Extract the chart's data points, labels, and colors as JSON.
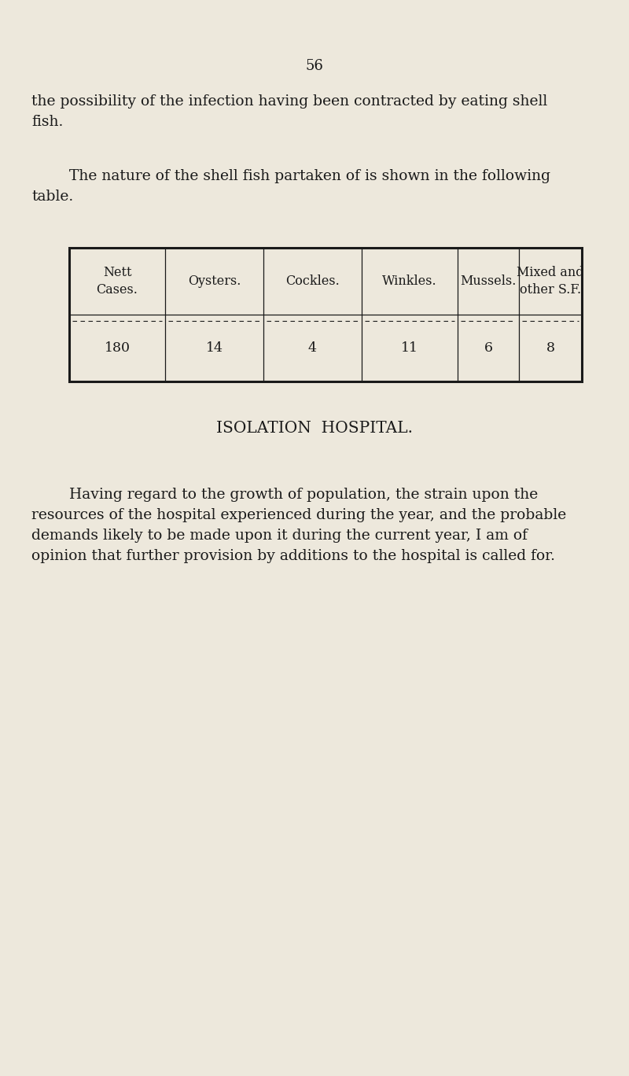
{
  "bg_color": "#ede8dc",
  "text_color": "#1a1a1a",
  "page_number": "56",
  "para1": "the possibility of the infection having been contracted by eating shell\nfish.",
  "para2": "        The nature of the shell fish partaken of is shown in the following\ntable.",
  "col_headers": [
    "Nett\nCases.",
    "Oysters.",
    "Cockles.",
    "Winkles.",
    "Mussels.",
    "Mixed and\nother S.F."
  ],
  "col_values": [
    "180",
    "14",
    "4",
    "11",
    "6",
    "8"
  ],
  "section_title": "ISOLATION  HOSPITAL.",
  "para3_line1": "        Having regard to the growth of population, the strain upon the",
  "para3_line2": "resources of the hospital experienced during the year, and the probable",
  "para3_line3": "demands likely to be made upon it during the current year, I am of",
  "para3_line4": "opinion that further provision by additions to the hospital is called for.",
  "body_fontsize": 13.5,
  "header_fontsize": 11.5,
  "value_fontsize": 12.5,
  "title_fontsize": 14.5,
  "page_num_fontsize": 13
}
